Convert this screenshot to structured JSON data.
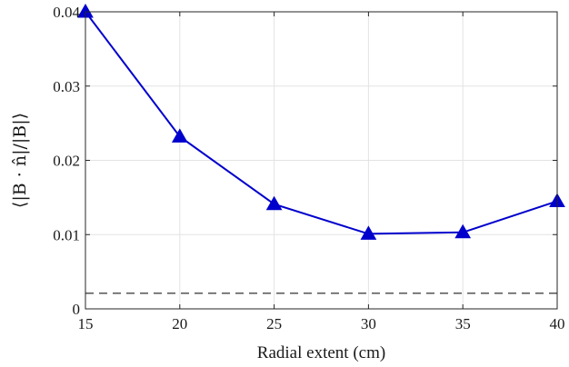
{
  "chart_data": {
    "type": "line",
    "xlabel": "Radial extent (cm)",
    "ylabel": "⟨|B · n̂|/|B|⟩",
    "xlim": [
      15,
      40
    ],
    "ylim": [
      0,
      0.04
    ],
    "xticks": [
      15,
      20,
      25,
      30,
      35,
      40
    ],
    "xtick_labels": [
      "15",
      "20",
      "25",
      "30",
      "35",
      "40"
    ],
    "yticks": [
      0,
      0.01,
      0.02,
      0.03,
      0.04
    ],
    "ytick_labels": [
      "0",
      "0.01",
      "0.02",
      "0.03",
      "0.04"
    ],
    "grid": true,
    "series": [
      {
        "x": [
          15,
          20,
          25,
          30,
          35,
          40
        ],
        "values": [
          0.04,
          0.0232,
          0.0141,
          0.0101,
          0.0103,
          0.0145
        ],
        "color": "#0000cc",
        "marker": "triangle"
      }
    ],
    "reference_lines": [
      {
        "y": 0.0021,
        "style": "dashed",
        "color": "#444444"
      }
    ]
  }
}
